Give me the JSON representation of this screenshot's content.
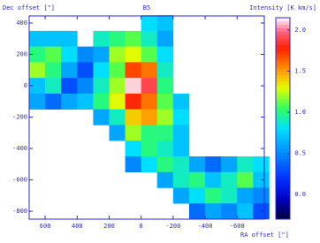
{
  "chart_data": {
    "type": "heatmap",
    "title": "B5",
    "ylabel": "Dec offset  [\"]",
    "xlabel": "RA offset  [\"]",
    "colorbar_label": "Intensity [K km/s]",
    "x": [
      650,
      550,
      450,
      350,
      250,
      150,
      50,
      -50,
      -150,
      -250,
      -350,
      -450,
      -550,
      -650,
      -750
    ],
    "y": [
      400,
      300,
      200,
      100,
      0,
      -100,
      -200,
      -300,
      -400,
      -500,
      -600,
      -700,
      -800
    ],
    "values": [
      [
        null,
        null,
        null,
        null,
        null,
        null,
        null,
        0.8,
        0.7,
        null,
        null,
        null,
        null,
        null,
        null
      ],
      [
        0.7,
        0.7,
        0.7,
        null,
        0.9,
        1.0,
        1.1,
        0.9,
        0.6,
        null,
        null,
        null,
        null,
        null,
        null
      ],
      [
        1.0,
        1.1,
        0.8,
        0.5,
        0.6,
        1.2,
        1.3,
        1.1,
        0.8,
        null,
        null,
        null,
        null,
        null,
        null
      ],
      [
        1.2,
        1.0,
        0.6,
        0.3,
        0.8,
        1.1,
        1.7,
        1.6,
        0.9,
        null,
        null,
        null,
        null,
        null,
        null
      ],
      [
        0.7,
        0.9,
        0.3,
        0.5,
        0.9,
        1.2,
        2.1,
        1.9,
        1.0,
        null,
        null,
        null,
        null,
        null,
        null
      ],
      [
        0.6,
        0.4,
        0.6,
        0.7,
        1.0,
        1.3,
        1.8,
        1.6,
        1.1,
        0.7,
        null,
        null,
        null,
        null,
        null
      ],
      [
        null,
        null,
        null,
        null,
        0.6,
        0.9,
        1.4,
        1.5,
        1.2,
        0.8,
        null,
        null,
        null,
        null,
        null
      ],
      [
        null,
        null,
        null,
        null,
        null,
        0.6,
        1.2,
        1.0,
        1.0,
        0.7,
        null,
        null,
        null,
        null,
        null
      ],
      [
        null,
        null,
        null,
        null,
        null,
        null,
        0.8,
        1.0,
        0.9,
        0.7,
        null,
        null,
        null,
        null,
        null
      ],
      [
        null,
        null,
        null,
        null,
        null,
        null,
        0.5,
        0.8,
        1.0,
        0.9,
        0.6,
        0.4,
        0.6,
        0.9,
        0.8
      ],
      [
        null,
        null,
        null,
        null,
        null,
        null,
        null,
        null,
        0.6,
        0.9,
        1.0,
        0.7,
        0.9,
        1.1,
        0.7
      ],
      [
        null,
        null,
        null,
        null,
        null,
        null,
        null,
        null,
        null,
        0.6,
        0.8,
        1.0,
        0.9,
        0.6,
        0.5
      ],
      [
        null,
        null,
        null,
        null,
        null,
        null,
        null,
        null,
        null,
        null,
        0.4,
        0.6,
        0.5,
        0.7,
        0.3
      ]
    ],
    "xlim": [
      700,
      -770
    ],
    "ylim": [
      -850,
      445
    ],
    "xticks": [
      600,
      400,
      200,
      0,
      -200,
      -400,
      -600
    ],
    "yticks": [
      400,
      200,
      0,
      -200,
      -400,
      -600,
      -800
    ],
    "clim": [
      -0.3,
      2.15
    ],
    "cticks": [
      {
        "value": 0,
        "label": "0.0"
      },
      {
        "value": 0.5,
        "label": "0.5"
      },
      {
        "value": 1,
        "label": "1.0"
      },
      {
        "value": 1.5,
        "label": "1.5"
      },
      {
        "value": 2,
        "label": "2.0"
      }
    ]
  }
}
